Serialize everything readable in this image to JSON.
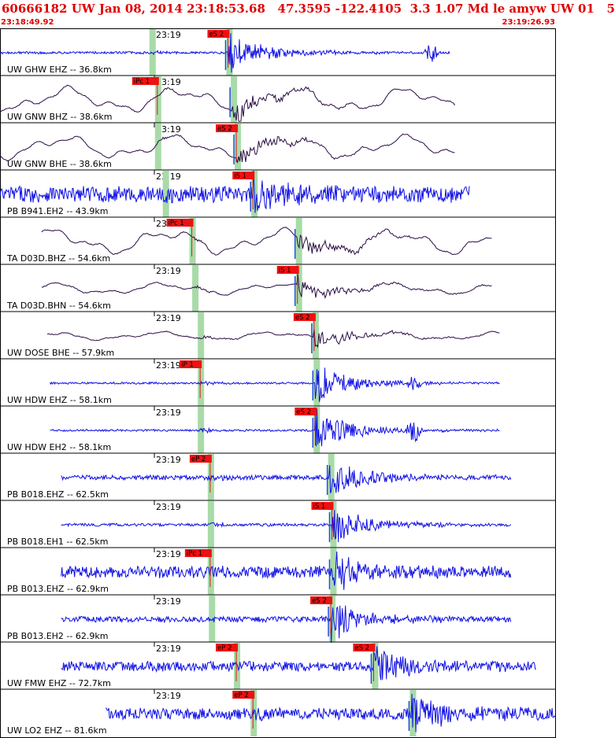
{
  "header": {
    "title": "60666182 UW Jan 08, 2014 23:18:53.68   47.3595 -122.4105  3.3 1.07 Md le amyw UW 01   5",
    "start_time": "23:18:49.92",
    "end_time": "23:19:26.93"
  },
  "tick_label": "23:19",
  "colors": {
    "header_text": "#e00000",
    "trace_broadband": "#2a0c44",
    "trace_short_period": "#1010e6",
    "pick": "#ee1111",
    "window": "#a8dba8",
    "marker": "#1a4fd0"
  },
  "chart_data": {
    "type": "line",
    "title": "60666182 UW Jan 08, 2014 23:18:53.68   47.3595 -122.4105  3.3 1.07 Md le amyw UW 01   5",
    "x_start": "23:18:49.92",
    "x_end": "23:19:26.93",
    "series": [
      {
        "name": "UW GHW EHZ -- 36.8km",
        "pick_labels": [
          "eS 2"
        ],
        "trace": "short_period",
        "data_start": 0.0,
        "data_end": 0.81,
        "base_amp": 0.06,
        "noise": "hf",
        "onset_p": 0.273,
        "onset_s": 0.41,
        "burst_center": 0.775,
        "burst_amp": 0.6
      },
      {
        "name": "UW GNW BHZ -- 38.6km",
        "pick_labels": [
          "iPc 1"
        ],
        "trace": "broadband",
        "data_start": 0.0,
        "data_end": 0.82,
        "base_amp": 0.75,
        "noise": "lf",
        "onset_p": 0.283,
        "onset_s": 0.418,
        "burst_center": 0.0,
        "burst_amp": 0.0
      },
      {
        "name": "UW GNW BHE -- 38.6km",
        "pick_labels": [
          "eS 2"
        ],
        "trace": "broadband",
        "data_start": 0.0,
        "data_end": 0.82,
        "base_amp": 0.7,
        "noise": "lf",
        "onset_p": 0.283,
        "onset_s": 0.425,
        "burst_center": 0.0,
        "burst_amp": 0.0
      },
      {
        "name": "PB B941.EH2 -- 43.9km",
        "pick_labels": [
          "iS 1"
        ],
        "trace": "short_period",
        "data_start": 0.0,
        "data_end": 0.845,
        "base_amp": 0.4,
        "noise": "hf",
        "onset_p": 0.297,
        "onset_s": 0.455,
        "burst_center": 0.0,
        "burst_amp": 0.0
      },
      {
        "name": "TA D03D.BHZ -- 54.6km",
        "pick_labels": [
          "iPc 1"
        ],
        "trace": "broadband",
        "data_start": 0.075,
        "data_end": 0.885,
        "base_amp": 0.75,
        "noise": "lf",
        "onset_p": 0.345,
        "onset_s": 0.535,
        "burst_center": 0.0,
        "burst_amp": 0.0
      },
      {
        "name": "TA D03D.BHN -- 54.6km",
        "pick_labels": [
          "iS 1"
        ],
        "trace": "broadband",
        "data_start": 0.075,
        "data_end": 0.885,
        "base_amp": 0.35,
        "noise": "lf",
        "onset_p": 0.35,
        "onset_s": 0.535,
        "burst_center": 0.0,
        "burst_amp": 0.0
      },
      {
        "name": "UW DOSE BHE -- 57.9km",
        "pick_labels": [
          "eS 2"
        ],
        "trace": "broadband",
        "data_start": 0.085,
        "data_end": 0.9,
        "base_amp": 0.25,
        "noise": "lf",
        "onset_p": 0.36,
        "onset_s": 0.565,
        "burst_center": 0.0,
        "burst_amp": 0.0
      },
      {
        "name": "UW HDW EHZ -- 58.1km",
        "pick_labels": [
          "iP 1"
        ],
        "trace": "short_period",
        "data_start": 0.09,
        "data_end": 0.9,
        "base_amp": 0.05,
        "noise": "hf",
        "onset_p": 0.36,
        "onset_s": 0.567,
        "burst_center": 0.745,
        "burst_amp": 0.4
      },
      {
        "name": "UW HDW EH2 -- 58.1km",
        "pick_labels": [
          "eS 2"
        ],
        "trace": "short_period",
        "data_start": 0.09,
        "data_end": 0.9,
        "base_amp": 0.05,
        "noise": "hf",
        "onset_p": 0.36,
        "onset_s": 0.567,
        "burst_center": 0.745,
        "burst_amp": 0.8
      },
      {
        "name": "PB B018.EHZ -- 62.5km",
        "pick_labels": [
          "eP 2"
        ],
        "trace": "short_period",
        "data_start": 0.11,
        "data_end": 0.92,
        "base_amp": 0.12,
        "noise": "hf",
        "onset_p": 0.378,
        "onset_s": 0.593,
        "burst_center": 0.0,
        "burst_amp": 0.0
      },
      {
        "name": "PB B018.EH1 -- 62.5km",
        "pick_labels": [
          "iS 1"
        ],
        "trace": "short_period",
        "data_start": 0.11,
        "data_end": 0.92,
        "base_amp": 0.07,
        "noise": "hf",
        "onset_p": 0.378,
        "onset_s": 0.597,
        "burst_center": 0.0,
        "burst_amp": 0.0
      },
      {
        "name": "PB B013.EHZ -- 62.9km",
        "pick_labels": [
          "iPc 1"
        ],
        "trace": "short_period",
        "data_start": 0.11,
        "data_end": 0.92,
        "base_amp": 0.3,
        "noise": "hf",
        "onset_p": 0.378,
        "onset_s": 0.597,
        "burst_center": 0.0,
        "burst_amp": 0.0
      },
      {
        "name": "PB B013.EH2 -- 62.9km",
        "pick_labels": [
          "eS 2"
        ],
        "trace": "short_period",
        "data_start": 0.11,
        "data_end": 0.92,
        "base_amp": 0.14,
        "noise": "hf",
        "onset_p": 0.38,
        "onset_s": 0.595,
        "burst_center": 0.0,
        "burst_amp": 0.0
      },
      {
        "name": "UW FMW EHZ -- 72.7km",
        "pick_labels": [
          "eP 2",
          "eS 2"
        ],
        "trace": "short_period",
        "data_start": 0.11,
        "data_end": 0.965,
        "base_amp": 0.25,
        "noise": "hf",
        "onset_p": 0.425,
        "onset_s": 0.672,
        "burst_center": 0.0,
        "burst_amp": 0.0
      },
      {
        "name": "UW LO2 EHZ -- 81.6km",
        "pick_labels": [
          "eP 2"
        ],
        "trace": "short_period",
        "data_start": 0.19,
        "data_end": 1.0,
        "base_amp": 0.3,
        "noise": "hf",
        "onset_p": 0.455,
        "onset_s": 0.74,
        "burst_center": 0.0,
        "burst_amp": 0.0
      }
    ]
  }
}
